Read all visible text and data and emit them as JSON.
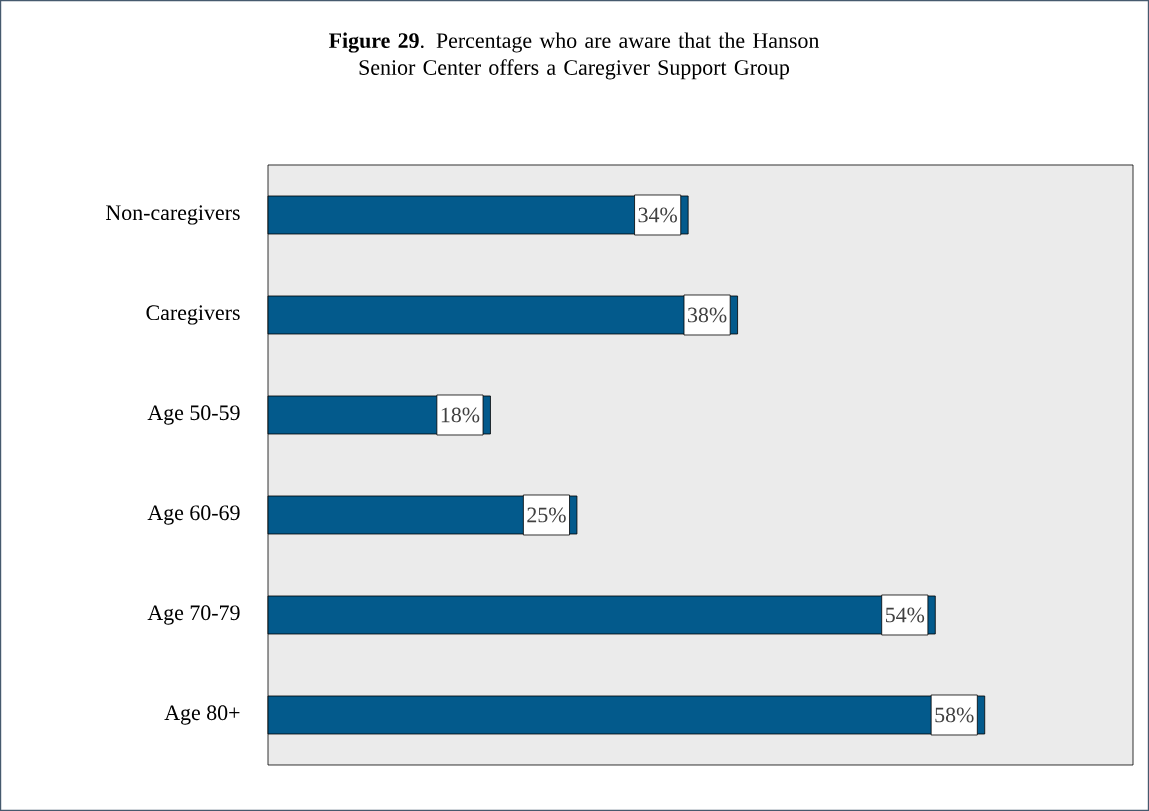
{
  "chart_data": {
    "type": "bar",
    "orientation": "horizontal",
    "title": "**Figure 29**. Percentage who are aware that the Hanson Senior Center offers a Caregiver Support Group",
    "categories": [
      "Non-caregivers",
      "Caregivers",
      "Age 50-59",
      "Age 60-69",
      "Age 70-79",
      "Age 80+"
    ],
    "values": [
      34,
      38,
      18,
      25,
      54,
      58
    ],
    "value_labels": [
      "34%",
      "38%",
      "18%",
      "25%",
      "54%",
      "58%"
    ],
    "color": "#035a8c",
    "xlim": [
      0,
      70
    ],
    "tick_labels": "y"
  }
}
